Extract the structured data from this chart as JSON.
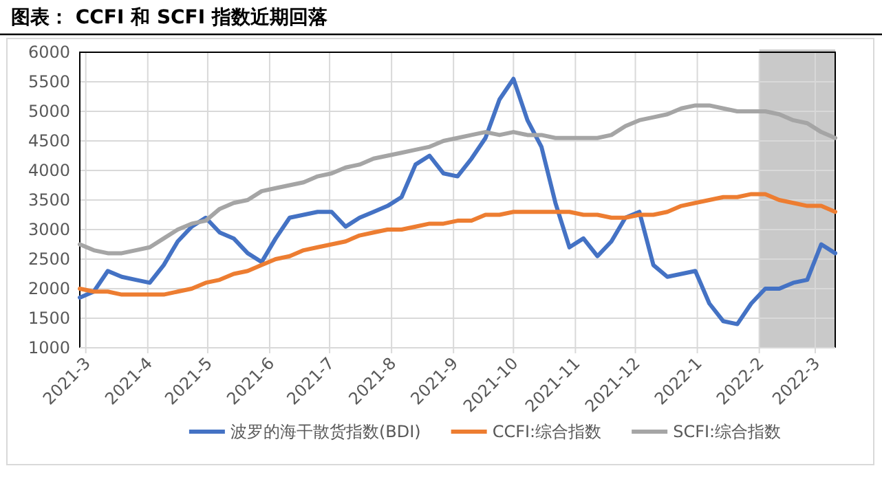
{
  "chart_data": {
    "type": "line",
    "title": "图表： CCFI 和 SCFI 指数近期回落",
    "x": [
      "2021-02-26",
      "2021-03-05",
      "2021-03-12",
      "2021-03-19",
      "2021-03-26",
      "2021-04-02",
      "2021-04-09",
      "2021-04-16",
      "2021-04-23",
      "2021-04-30",
      "2021-05-07",
      "2021-05-14",
      "2021-05-21",
      "2021-05-28",
      "2021-06-04",
      "2021-06-11",
      "2021-06-18",
      "2021-06-25",
      "2021-07-02",
      "2021-07-09",
      "2021-07-16",
      "2021-07-23",
      "2021-07-30",
      "2021-08-06",
      "2021-08-13",
      "2021-08-20",
      "2021-08-27",
      "2021-09-03",
      "2021-09-10",
      "2021-09-17",
      "2021-09-24",
      "2021-10-01",
      "2021-10-08",
      "2021-10-15",
      "2021-10-22",
      "2021-10-29",
      "2021-11-05",
      "2021-11-12",
      "2021-11-19",
      "2021-11-26",
      "2021-12-03",
      "2021-12-10",
      "2021-12-17",
      "2021-12-24",
      "2021-12-31",
      "2022-01-07",
      "2022-01-14",
      "2022-01-21",
      "2022-01-28",
      "2022-02-04",
      "2022-02-11",
      "2022-02-18",
      "2022-02-25",
      "2022-03-04",
      "2022-03-11"
    ],
    "xlim": [
      "2021-02-26",
      "2022-03-11"
    ],
    "xticks": [
      {
        "value": "2021-03-01",
        "label": "2021-3"
      },
      {
        "value": "2021-04-01",
        "label": "2021-4"
      },
      {
        "value": "2021-05-01",
        "label": "2021-5"
      },
      {
        "value": "2021-06-01",
        "label": "2021-6"
      },
      {
        "value": "2021-07-01",
        "label": "2021-7"
      },
      {
        "value": "2021-08-01",
        "label": "2021-8"
      },
      {
        "value": "2021-09-01",
        "label": "2021-9"
      },
      {
        "value": "2021-10-01",
        "label": "2021-10"
      },
      {
        "value": "2021-11-01",
        "label": "2021-11"
      },
      {
        "value": "2021-12-01",
        "label": "2021-12"
      },
      {
        "value": "2022-01-01",
        "label": "2022-1"
      },
      {
        "value": "2022-02-01",
        "label": "2022-2"
      },
      {
        "value": "2022-03-01",
        "label": "2022-3"
      }
    ],
    "ylim": [
      1000,
      6000
    ],
    "yticks": [
      1000,
      1500,
      2000,
      2500,
      3000,
      3500,
      4000,
      4500,
      5000,
      5500,
      6000
    ],
    "grid": true,
    "legend": "bottom",
    "marker": "none",
    "line_style": "solid",
    "bands": [
      {
        "axis": "x",
        "from": "2022-02-01",
        "to": "2022-03-11",
        "color": "#c9c9c9"
      }
    ],
    "series": [
      {
        "name": "波罗的海干散货指数(BDI)",
        "color": "#4472c4",
        "values": [
          1850,
          1950,
          2300,
          2200,
          2150,
          2100,
          2400,
          2800,
          3050,
          3200,
          2950,
          2850,
          2600,
          2450,
          2850,
          3200,
          3250,
          3300,
          3300,
          3050,
          3200,
          3300,
          3400,
          3550,
          4100,
          4250,
          3950,
          3900,
          4200,
          4550,
          5200,
          5550,
          4850,
          4400,
          3450,
          2700,
          2850,
          2550,
          2800,
          3200,
          3300,
          2400,
          2200,
          2250,
          2300,
          1750,
          1450,
          1400,
          1750,
          2000,
          2000,
          2100,
          2150,
          2750,
          2600
        ]
      },
      {
        "name": "CCFI:综合指数",
        "color": "#ed7d31",
        "values": [
          2000,
          1950,
          1950,
          1900,
          1900,
          1900,
          1900,
          1950,
          2000,
          2100,
          2150,
          2250,
          2300,
          2400,
          2500,
          2550,
          2650,
          2700,
          2750,
          2800,
          2900,
          2950,
          3000,
          3000,
          3050,
          3100,
          3100,
          3150,
          3150,
          3250,
          3250,
          3300,
          3300,
          3300,
          3300,
          3300,
          3250,
          3250,
          3200,
          3200,
          3250,
          3250,
          3300,
          3400,
          3450,
          3500,
          3550,
          3550,
          3600,
          3600,
          3500,
          3450,
          3400,
          3400,
          3300
        ]
      },
      {
        "name": "SCFI:综合指数",
        "color": "#a5a5a5",
        "values": [
          2750,
          2650,
          2600,
          2600,
          2650,
          2700,
          2850,
          3000,
          3100,
          3150,
          3350,
          3450,
          3500,
          3650,
          3700,
          3750,
          3800,
          3900,
          3950,
          4050,
          4100,
          4200,
          4250,
          4300,
          4350,
          4400,
          4500,
          4550,
          4600,
          4650,
          4600,
          4650,
          4600,
          4600,
          4550,
          4550,
          4550,
          4550,
          4600,
          4750,
          4850,
          4900,
          4950,
          5050,
          5100,
          5100,
          5050,
          5000,
          5000,
          5000,
          4950,
          4850,
          4800,
          4650,
          4550
        ]
      }
    ]
  }
}
